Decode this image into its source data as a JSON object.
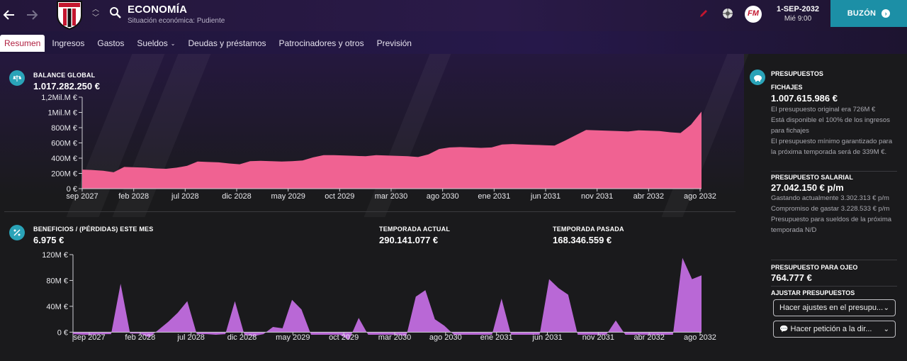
{
  "header": {
    "title": "ECONOMÍA",
    "subtitle": "Situación económica: Pudiente",
    "date": "1-SEP-2032",
    "time": "Mié 9:00",
    "inbox_label": "BUZÓN",
    "logo_text": "FM"
  },
  "tabs": [
    {
      "label": "Resumen",
      "active": true
    },
    {
      "label": "Ingresos"
    },
    {
      "label": "Gastos"
    },
    {
      "label": "Sueldos",
      "dropdown": true
    },
    {
      "label": "Deudas y préstamos"
    },
    {
      "label": "Patrocinadores y otros"
    },
    {
      "label": "Previsión"
    }
  ],
  "balance": {
    "label": "BALANCE GLOBAL",
    "value": "1.017.282.250 €"
  },
  "profit": {
    "label": "BENEFICIOS / (PÉRDIDAS) ESTE MES",
    "value": "6.975 €",
    "current_label": "TEMPORADA ACTUAL",
    "current_value": "290.141.077 €",
    "last_label": "TEMPORADA PASADA",
    "last_value": "168.346.559 €"
  },
  "budgets": {
    "title": "PRESUPUESTOS",
    "transfer_label": "FICHAJES",
    "transfer_value": "1.007.615.986 €",
    "transfer_notes": [
      "El presupuesto original era 726M €",
      "Está disponible el 100% de los ingresos para fichajes",
      "El presupuesto mínimo garantizado para la próxima temporada será de 339M €."
    ],
    "wage_label": "PRESUPUESTO SALARIAL",
    "wage_value": "27.042.150 € p/m",
    "wage_notes": [
      "Gastando actualmente 3.302.313 € p/m",
      "Compromiso de gastar 3.228.533 € p/m",
      "Presupuesto para sueldos de la próxima temporada N/D"
    ],
    "scout_label": "PRESUPUESTO PARA OJEO",
    "scout_value": "764.777 €",
    "adjust_label": "AJUSTAR PRESUPUESTOS",
    "adjust_dropdown": "Hacer ajustes en el presupu...",
    "request_dropdown": "Hacer petición a la dir..."
  },
  "colors": {
    "balance_fill": "#f06292",
    "profit_fill": "#b968d6",
    "accent": "#1c8fa6"
  },
  "chart_data": [
    {
      "type": "area",
      "title": "BALANCE GLOBAL",
      "x_tick_labels": [
        "sep 2027",
        "feb 2028",
        "jul 2028",
        "dic 2028",
        "may 2029",
        "oct 2029",
        "mar 2030",
        "ago 2030",
        "ene 2031",
        "jun 2031",
        "nov 2031",
        "abr 2032",
        "ago 2032"
      ],
      "y_tick_labels": [
        "0 €",
        "200M €",
        "400M €",
        "600M €",
        "800M €",
        "1Mil.M €",
        "1,2Mil.M €"
      ],
      "ylim": [
        0,
        1200
      ],
      "unit": "M €",
      "months": [
        "sep 2027",
        "oct 2027",
        "nov 2027",
        "dic 2027",
        "ene 2028",
        "feb 2028",
        "mar 2028",
        "abr 2028",
        "may 2028",
        "jun 2028",
        "jul 2028",
        "ago 2028",
        "sep 2028",
        "oct 2028",
        "nov 2028",
        "dic 2028",
        "ene 2029",
        "feb 2029",
        "mar 2029",
        "abr 2029",
        "may 2029",
        "jun 2029",
        "jul 2029",
        "ago 2029",
        "sep 2029",
        "oct 2029",
        "nov 2029",
        "dic 2029",
        "ene 2030",
        "feb 2030",
        "mar 2030",
        "abr 2030",
        "may 2030",
        "jun 2030",
        "jul 2030",
        "ago 2030",
        "sep 2030",
        "oct 2030",
        "nov 2030",
        "dic 2030",
        "ene 2031",
        "feb 2031",
        "mar 2031",
        "abr 2031",
        "may 2031",
        "jun 2031",
        "jul 2031",
        "ago 2031",
        "sep 2031",
        "oct 2031",
        "nov 2031",
        "dic 2031",
        "ene 2032",
        "feb 2032",
        "mar 2032",
        "abr 2032",
        "may 2032",
        "jun 2032",
        "jul 2032",
        "ago 2032"
      ],
      "values": [
        250,
        245,
        235,
        215,
        285,
        280,
        275,
        265,
        260,
        275,
        300,
        355,
        350,
        345,
        330,
        320,
        360,
        365,
        360,
        355,
        360,
        370,
        410,
        440,
        440,
        435,
        430,
        425,
        440,
        435,
        430,
        425,
        415,
        450,
        520,
        540,
        545,
        540,
        535,
        540,
        580,
        585,
        580,
        575,
        570,
        565,
        630,
        700,
        770,
        765,
        760,
        755,
        750,
        765,
        760,
        755,
        740,
        730,
        840,
        1010
      ]
    },
    {
      "type": "area",
      "title": "BENEFICIOS / (PÉRDIDAS) ESTE MES",
      "x_tick_labels": [
        "sep 2027",
        "feb 2028",
        "jul 2028",
        "dic 2028",
        "may 2029",
        "oct 2029",
        "mar 2030",
        "ago 2030",
        "ene 2031",
        "jun 2031",
        "nov 2031",
        "abr 2032",
        "ago 2032"
      ],
      "y_tick_labels": [
        "0 €",
        "40M €",
        "80M €",
        "120M €"
      ],
      "ylim": [
        -15,
        120
      ],
      "unit": "M €",
      "values": [
        -3,
        -4,
        -4,
        -3,
        -3,
        75,
        -2,
        -2,
        -8,
        4,
        16,
        30,
        48,
        -3,
        -3,
        -4,
        -3,
        48,
        -4,
        -6,
        -3,
        8,
        6,
        50,
        35,
        -4,
        -4,
        -4,
        -4,
        -12,
        22,
        -4,
        -4,
        -4,
        -4,
        -6,
        55,
        65,
        20,
        10,
        -4,
        -4,
        -4,
        -4,
        -4,
        52,
        -4,
        -4,
        -4,
        -4,
        82,
        68,
        58,
        -4,
        -4,
        -4,
        -4,
        18,
        -4,
        -4,
        -4,
        -4,
        -4,
        -4,
        115,
        82,
        88
      ]
    }
  ]
}
